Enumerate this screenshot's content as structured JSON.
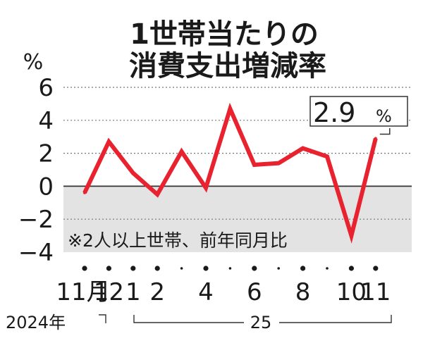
{
  "title_line1": "1世帯当たりの",
  "title_line2": "消費支出増減率",
  "y_unit": "%",
  "note": "※2人以上世帯、前年同月比",
  "callout": {
    "value": "2.9",
    "unit": "%"
  },
  "year_labels": {
    "first": "2024年",
    "second": "25"
  },
  "colors": {
    "line": "#e8232f",
    "negative_band": "#e3e3e3",
    "text": "#1a1a1a"
  },
  "chart_data": {
    "type": "line",
    "ylim": [
      -4,
      6
    ],
    "yticks": [
      "-4",
      "-2",
      "0",
      "2",
      "4",
      "6"
    ],
    "grid": "dotted horizontal",
    "x": [
      "2024-11",
      "2024-12",
      "2025-01",
      "2025-02",
      "2025-03",
      "2025-04",
      "2025-05",
      "2025-06",
      "2025-07",
      "2025-08",
      "2025-09",
      "2025-10",
      "2025-11"
    ],
    "xtick_labels": [
      "11月",
      "12",
      "1",
      "2",
      "",
      "4",
      "",
      "6",
      "",
      "8",
      "",
      "10",
      "11"
    ],
    "series": [
      {
        "values": [
          -0.4,
          2.7,
          0.8,
          -0.5,
          2.1,
          -0.1,
          4.7,
          1.3,
          1.4,
          2.3,
          1.8,
          -3.0,
          2.9
        ]
      }
    ],
    "highlighted_point": {
      "index": 12,
      "label": "2.9%"
    }
  }
}
